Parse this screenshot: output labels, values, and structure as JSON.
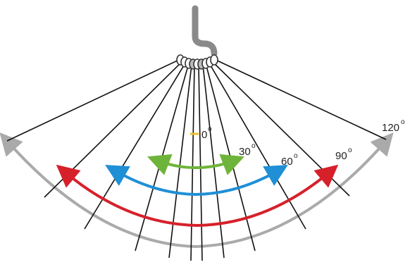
{
  "labels": {
    "zero": "0",
    "thirty": "30",
    "sixty": "60",
    "ninety": "90",
    "one_twenty": "120",
    "degree_mark": "o"
  },
  "colors": {
    "hook": "#8a8a8a",
    "ring": "#555555",
    "lines": "#111111",
    "fan_arc": "#aaaaaa",
    "arrow_120": "#aaaaaa",
    "arrow_90": "#d6202a",
    "arrow_60": "#1f8fd6",
    "arrow_30": "#6fb43a",
    "zero_mark": "#f0c020"
  }
}
